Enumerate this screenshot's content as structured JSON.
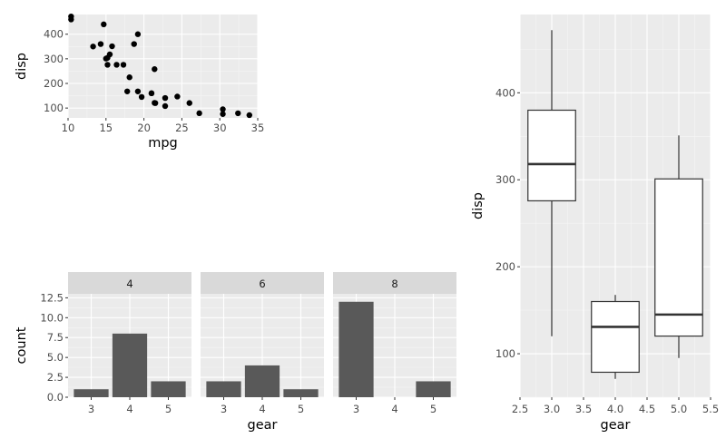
{
  "chart_data": [
    {
      "id": "scatter",
      "type": "scatter",
      "xlabel": "mpg",
      "ylabel": "disp",
      "xlim": [
        10,
        35
      ],
      "ylim": [
        60,
        480
      ],
      "xticks": [
        10,
        15,
        20,
        25,
        30,
        35
      ],
      "yticks": [
        100,
        200,
        300,
        400
      ],
      "points": [
        [
          21.0,
          160
        ],
        [
          21.0,
          160
        ],
        [
          22.8,
          108
        ],
        [
          21.4,
          258
        ],
        [
          18.7,
          360
        ],
        [
          18.1,
          225
        ],
        [
          14.3,
          360
        ],
        [
          24.4,
          146.7
        ],
        [
          22.8,
          140.8
        ],
        [
          19.2,
          167.6
        ],
        [
          17.8,
          167.6
        ],
        [
          16.4,
          275.8
        ],
        [
          17.3,
          275.8
        ],
        [
          15.2,
          275.8
        ],
        [
          10.4,
          472
        ],
        [
          10.4,
          460
        ],
        [
          14.7,
          440
        ],
        [
          32.4,
          78.7
        ],
        [
          30.4,
          75.7
        ],
        [
          33.9,
          71.1
        ],
        [
          21.5,
          120.1
        ],
        [
          15.5,
          318
        ],
        [
          15.2,
          304
        ],
        [
          13.3,
          350
        ],
        [
          19.2,
          400
        ],
        [
          27.3,
          79
        ],
        [
          26.0,
          120.3
        ],
        [
          30.4,
          95.1
        ],
        [
          15.8,
          351
        ],
        [
          19.7,
          145
        ],
        [
          15.0,
          301
        ],
        [
          21.4,
          121
        ]
      ]
    },
    {
      "id": "facet-bars",
      "type": "bar",
      "xlabel": "gear",
      "ylabel": "count",
      "ylim": [
        0,
        13
      ],
      "yticks": [
        0.0,
        2.5,
        5.0,
        7.5,
        10.0,
        12.5
      ],
      "ytick_labels": [
        "0.0",
        "2.5",
        "5.0",
        "7.5",
        "10.0",
        "12.5"
      ],
      "categories": [
        "3",
        "4",
        "5"
      ],
      "facets": [
        {
          "label": "4",
          "values": [
            1,
            8,
            2
          ]
        },
        {
          "label": "6",
          "values": [
            2,
            4,
            1
          ]
        },
        {
          "label": "8",
          "values": [
            12,
            0,
            2
          ]
        }
      ]
    },
    {
      "id": "boxplot",
      "type": "box",
      "xlabel": "gear",
      "ylabel": "disp",
      "xlim": [
        2.5,
        5.5
      ],
      "ylim": [
        50,
        490
      ],
      "xticks": [
        2.5,
        3.0,
        3.5,
        4.0,
        4.5,
        5.0,
        5.5
      ],
      "yticks": [
        100,
        200,
        300,
        400
      ],
      "boxes": [
        {
          "x": 3.0,
          "lower": 120.1,
          "q1": 275.8,
          "median": 318,
          "q3": 380,
          "upper": 472
        },
        {
          "x": 4.0,
          "lower": 71.1,
          "q1": 78.7,
          "median": 130.9,
          "q3": 160,
          "upper": 167.6
        },
        {
          "x": 5.0,
          "lower": 95.1,
          "q1": 120.3,
          "median": 145,
          "q3": 301,
          "upper": 351
        }
      ]
    }
  ]
}
